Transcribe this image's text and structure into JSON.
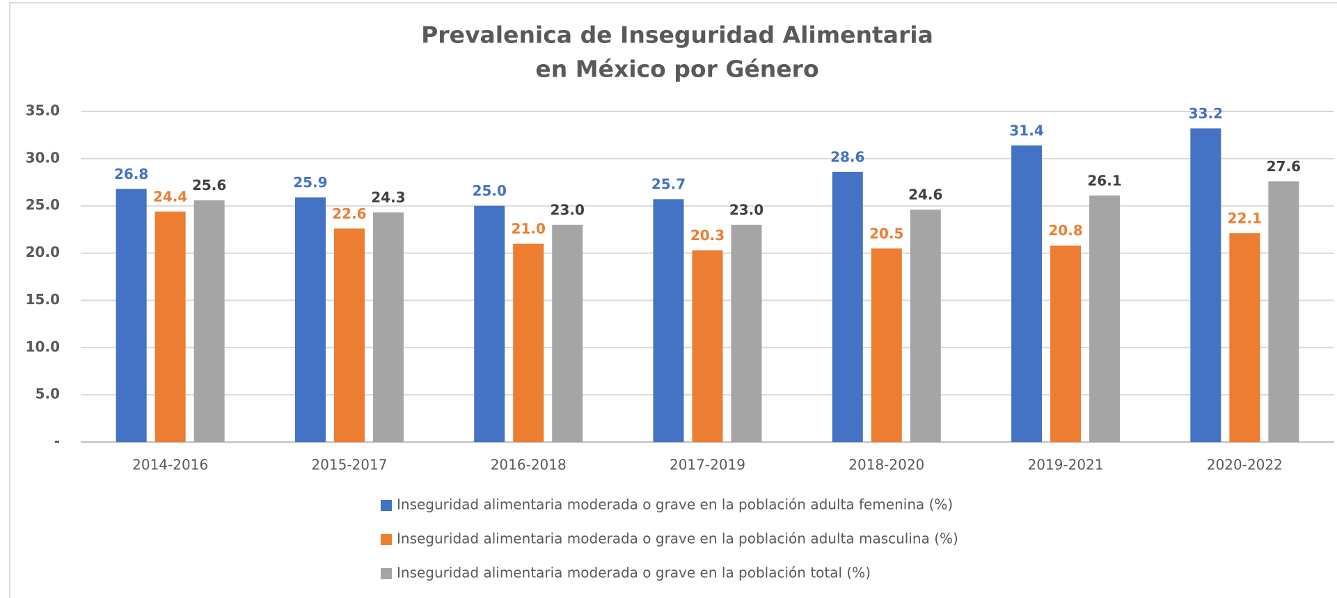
{
  "chart_data": {
    "type": "bar",
    "title": [
      "Prevalenica de Inseguridad Alimentaria",
      "en México por Género"
    ],
    "categories": [
      "2014-2016",
      "2015-2017",
      "2016-2018",
      "2017-2019",
      "2018-2020",
      "2019-2021",
      "2020-2022"
    ],
    "series": [
      {
        "name": "Inseguridad alimentaria moderada o grave en la población adulta femenina (%)",
        "color": "#4472c4",
        "label_color": "#4472c4",
        "values": [
          26.8,
          25.9,
          25.0,
          25.7,
          28.6,
          31.4,
          33.2
        ],
        "value_labels": [
          "26.8",
          "25.9",
          "25.0",
          "25.7",
          "28.6",
          "31.4",
          "33.2"
        ]
      },
      {
        "name": "Inseguridad alimentaria moderada o grave en la población adulta masculina (%)",
        "color": "#ed7d31",
        "label_color": "#ed7d31",
        "values": [
          24.4,
          22.6,
          21.0,
          20.3,
          20.5,
          20.8,
          22.1
        ],
        "value_labels": [
          "24.4",
          "22.6",
          "21.0",
          "20.3",
          "20.5",
          "20.8",
          "22.1"
        ]
      },
      {
        "name": "Inseguridad alimentaria moderada o grave en la población total (%)",
        "color": "#a5a5a5",
        "label_color": "#404040",
        "values": [
          25.6,
          24.3,
          23.0,
          23.0,
          24.6,
          26.1,
          27.6
        ],
        "value_labels": [
          "25.6",
          "24.3",
          "23.0",
          "23.0",
          "24.6",
          "26.1",
          "27.6"
        ]
      }
    ],
    "ylim": [
      0,
      35
    ],
    "yticks": [
      {
        "value": 0,
        "label": "-"
      },
      {
        "value": 5,
        "label": "5.0"
      },
      {
        "value": 10,
        "label": "10.0"
      },
      {
        "value": 15,
        "label": "15.0"
      },
      {
        "value": 20,
        "label": "20.0"
      },
      {
        "value": 25,
        "label": "25.0"
      },
      {
        "value": 30,
        "label": "30.0"
      },
      {
        "value": 35,
        "label": "35.0"
      }
    ],
    "grid": true,
    "legend": "bottom"
  }
}
